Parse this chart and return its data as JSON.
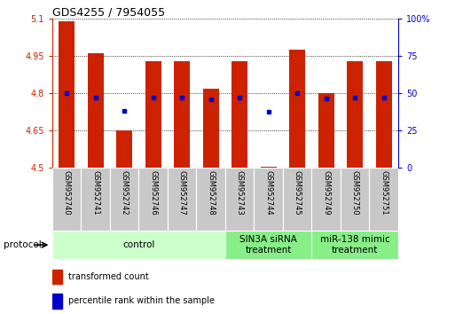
{
  "title": "GDS4255 / 7954055",
  "samples": [
    "GSM952740",
    "GSM952741",
    "GSM952742",
    "GSM952746",
    "GSM952747",
    "GSM952748",
    "GSM952743",
    "GSM952744",
    "GSM952745",
    "GSM952749",
    "GSM952750",
    "GSM952751"
  ],
  "bar_tops": [
    5.09,
    4.96,
    4.65,
    4.93,
    4.93,
    4.82,
    4.93,
    4.505,
    4.975,
    4.8,
    4.93,
    4.93
  ],
  "bar_bottoms": [
    4.5,
    4.5,
    4.5,
    4.5,
    4.5,
    4.5,
    4.5,
    4.5,
    4.5,
    4.5,
    4.5,
    4.5
  ],
  "percentile_values": [
    4.8,
    4.785,
    4.73,
    4.785,
    4.785,
    4.775,
    4.785,
    4.725,
    4.8,
    4.78,
    4.785,
    4.785
  ],
  "bar_color": "#cc2200",
  "dot_color": "#0000cc",
  "ylim": [
    4.5,
    5.1
  ],
  "y2lim": [
    0,
    100
  ],
  "yticks": [
    4.5,
    4.65,
    4.8,
    4.95,
    5.1
  ],
  "y2ticks": [
    0,
    25,
    50,
    75,
    100
  ],
  "ytick_labels": [
    "4.5",
    "4.65",
    "4.8",
    "4.95",
    "5.1"
  ],
  "y2tick_labels": [
    "0",
    "25",
    "50",
    "75",
    "100%"
  ],
  "groups": [
    {
      "label": "control",
      "start": 0,
      "end": 6,
      "color": "#ccffcc"
    },
    {
      "label": "SIN3A siRNA\ntreatment",
      "start": 6,
      "end": 9,
      "color": "#88ee88"
    },
    {
      "label": "miR-138 mimic\ntreatment",
      "start": 9,
      "end": 12,
      "color": "#88ee88"
    }
  ],
  "protocol_label": "protocol",
  "legend_items": [
    {
      "label": "transformed count",
      "color": "#cc2200"
    },
    {
      "label": "percentile rank within the sample",
      "color": "#0000cc"
    }
  ],
  "bar_width": 0.55,
  "left_axis_color": "#cc2200",
  "right_axis_color": "#0000cc",
  "sample_bg_color": "#c8c8c8",
  "title_fontsize": 9,
  "tick_fontsize": 7,
  "sample_fontsize": 6,
  "group_fontsize": 7.5,
  "legend_fontsize": 7
}
